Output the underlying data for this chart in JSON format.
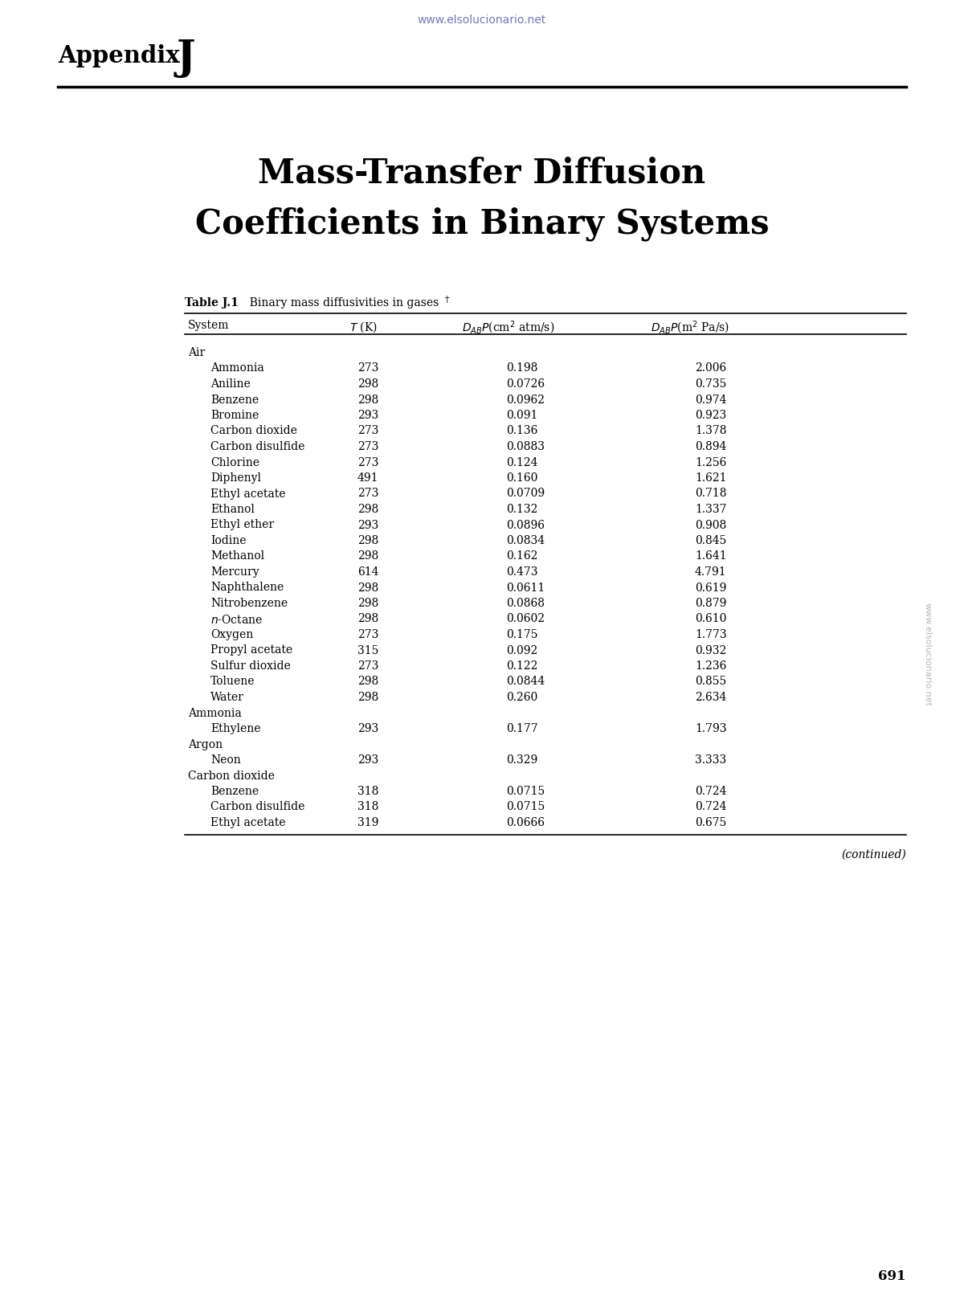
{
  "url_text": "www.elsolucionario.net",
  "url_color": "#7777bb",
  "appendix_label": "Appendix",
  "appendix_letter": "J",
  "chapter_title_line1": "Mass-Transfer Diffusion",
  "chapter_title_line2": "Coefficients in Binary Systems",
  "table_label": "Table J.1",
  "table_caption": "Binary mass diffusivities in gases",
  "table_footnote_dagger": "†",
  "col_headers": [
    "System",
    "T (K)",
    "DAB_cm",
    "DAB_m"
  ],
  "rows": [
    {
      "indent": 0,
      "system": "Air",
      "T": "",
      "DAB_cm": "",
      "DAB_m": ""
    },
    {
      "indent": 1,
      "system": "Ammonia",
      "T": "273",
      "DAB_cm": "0.198",
      "DAB_m": "2.006"
    },
    {
      "indent": 1,
      "system": "Aniline",
      "T": "298",
      "DAB_cm": "0.0726",
      "DAB_m": "0.735"
    },
    {
      "indent": 1,
      "system": "Benzene",
      "T": "298",
      "DAB_cm": "0.0962",
      "DAB_m": "0.974"
    },
    {
      "indent": 1,
      "system": "Bromine",
      "T": "293",
      "DAB_cm": "0.091",
      "DAB_m": "0.923"
    },
    {
      "indent": 1,
      "system": "Carbon dioxide",
      "T": "273",
      "DAB_cm": "0.136",
      "DAB_m": "1.378"
    },
    {
      "indent": 1,
      "system": "Carbon disulfide",
      "T": "273",
      "DAB_cm": "0.0883",
      "DAB_m": "0.894"
    },
    {
      "indent": 1,
      "system": "Chlorine",
      "T": "273",
      "DAB_cm": "0.124",
      "DAB_m": "1.256"
    },
    {
      "indent": 1,
      "system": "Diphenyl",
      "T": "491",
      "DAB_cm": "0.160",
      "DAB_m": "1.621"
    },
    {
      "indent": 1,
      "system": "Ethyl acetate",
      "T": "273",
      "DAB_cm": "0.0709",
      "DAB_m": "0.718"
    },
    {
      "indent": 1,
      "system": "Ethanol",
      "T": "298",
      "DAB_cm": "0.132",
      "DAB_m": "1.337"
    },
    {
      "indent": 1,
      "system": "Ethyl ether",
      "T": "293",
      "DAB_cm": "0.0896",
      "DAB_m": "0.908"
    },
    {
      "indent": 1,
      "system": "Iodine",
      "T": "298",
      "DAB_cm": "0.0834",
      "DAB_m": "0.845"
    },
    {
      "indent": 1,
      "system": "Methanol",
      "T": "298",
      "DAB_cm": "0.162",
      "DAB_m": "1.641"
    },
    {
      "indent": 1,
      "system": "Mercury",
      "T": "614",
      "DAB_cm": "0.473",
      "DAB_m": "4.791"
    },
    {
      "indent": 1,
      "system": "Naphthalene",
      "T": "298",
      "DAB_cm": "0.0611",
      "DAB_m": "0.619"
    },
    {
      "indent": 1,
      "system": "Nitrobenzene",
      "T": "298",
      "DAB_cm": "0.0868",
      "DAB_m": "0.879"
    },
    {
      "indent": 1,
      "system": "n-Octane",
      "T": "298",
      "DAB_cm": "0.0602",
      "DAB_m": "0.610"
    },
    {
      "indent": 1,
      "system": "Oxygen",
      "T": "273",
      "DAB_cm": "0.175",
      "DAB_m": "1.773"
    },
    {
      "indent": 1,
      "system": "Propyl acetate",
      "T": "315",
      "DAB_cm": "0.092",
      "DAB_m": "0.932"
    },
    {
      "indent": 1,
      "system": "Sulfur dioxide",
      "T": "273",
      "DAB_cm": "0.122",
      "DAB_m": "1.236"
    },
    {
      "indent": 1,
      "system": "Toluene",
      "T": "298",
      "DAB_cm": "0.0844",
      "DAB_m": "0.855"
    },
    {
      "indent": 1,
      "system": "Water",
      "T": "298",
      "DAB_cm": "0.260",
      "DAB_m": "2.634"
    },
    {
      "indent": 0,
      "system": "Ammonia",
      "T": "",
      "DAB_cm": "",
      "DAB_m": ""
    },
    {
      "indent": 1,
      "system": "Ethylene",
      "T": "293",
      "DAB_cm": "0.177",
      "DAB_m": "1.793"
    },
    {
      "indent": 0,
      "system": "Argon",
      "T": "",
      "DAB_cm": "",
      "DAB_m": ""
    },
    {
      "indent": 1,
      "system": "Neon",
      "T": "293",
      "DAB_cm": "0.329",
      "DAB_m": "3.333"
    },
    {
      "indent": 0,
      "system": "Carbon dioxide",
      "T": "",
      "DAB_cm": "",
      "DAB_m": ""
    },
    {
      "indent": 1,
      "system": "Benzene",
      "T": "318",
      "DAB_cm": "0.0715",
      "DAB_m": "0.724"
    },
    {
      "indent": 1,
      "system": "Carbon disulfide",
      "T": "318",
      "DAB_cm": "0.0715",
      "DAB_m": "0.724"
    },
    {
      "indent": 1,
      "system": "Ethyl acetate",
      "T": "319",
      "DAB_cm": "0.0666",
      "DAB_m": "0.675"
    }
  ],
  "continued_text": "(continued)",
  "page_number": "691",
  "watermark_text": "www.elsolucionario.net",
  "watermark_color": "#aaaaaa",
  "background_color": "#ffffff"
}
